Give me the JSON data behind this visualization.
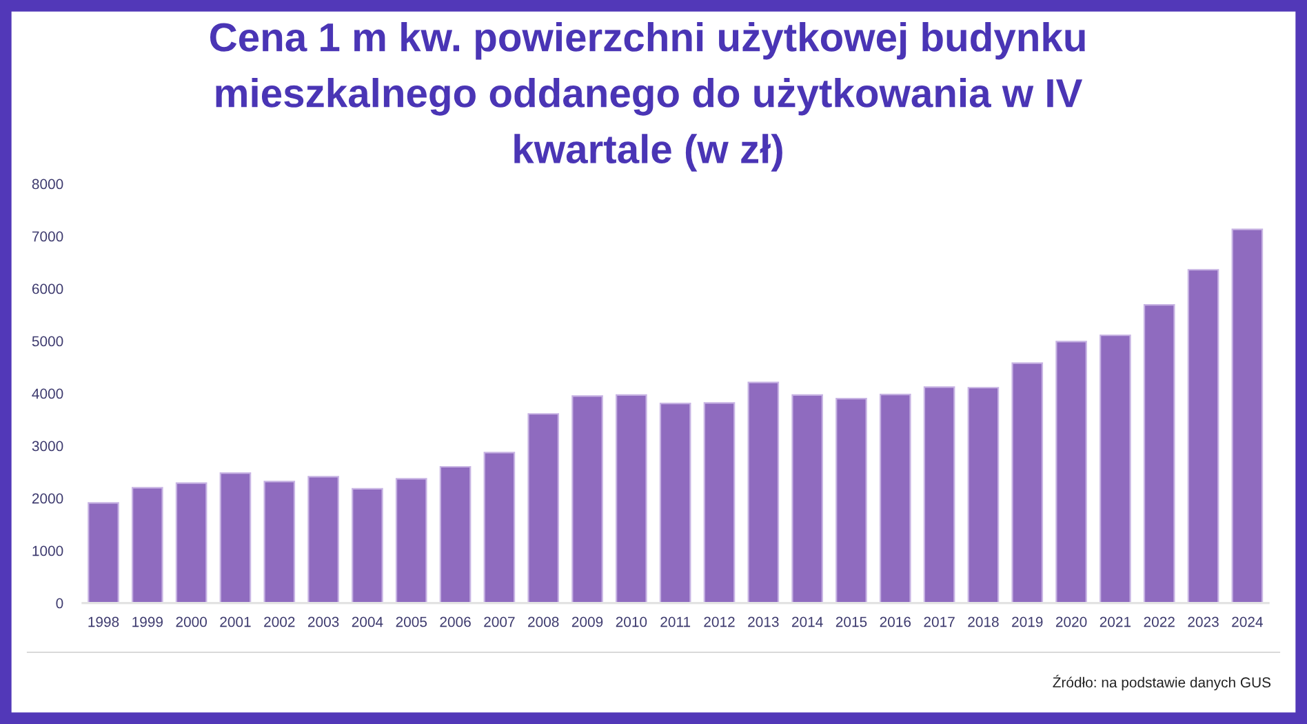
{
  "chart_data": {
    "type": "bar",
    "title": "Cena 1 m kw. powierzchni użytkowej budynku mieszkalnego oddanego do użytkowania w IV kwartale (w zł)",
    "categories": [
      "1998",
      "1999",
      "2000",
      "2001",
      "2002",
      "2003",
      "2004",
      "2005",
      "2006",
      "2007",
      "2008",
      "2009",
      "2010",
      "2011",
      "2012",
      "2013",
      "2014",
      "2015",
      "2016",
      "2017",
      "2018",
      "2019",
      "2020",
      "2021",
      "2022",
      "2023",
      "2024"
    ],
    "values": [
      1910,
      2200,
      2290,
      2480,
      2320,
      2410,
      2180,
      2370,
      2600,
      2870,
      3610,
      3950,
      3970,
      3810,
      3820,
      4210,
      3970,
      3900,
      3980,
      4120,
      4110,
      4580,
      4990,
      5110,
      5690,
      6360,
      7130
    ],
    "color": "#8f6bbf",
    "ylim": [
      0,
      8000
    ],
    "yticks": [
      0,
      1000,
      2000,
      3000,
      4000,
      5000,
      6000,
      7000,
      8000
    ],
    "annotations": [
      "Źródło: na podstawie danych GUS"
    ]
  }
}
